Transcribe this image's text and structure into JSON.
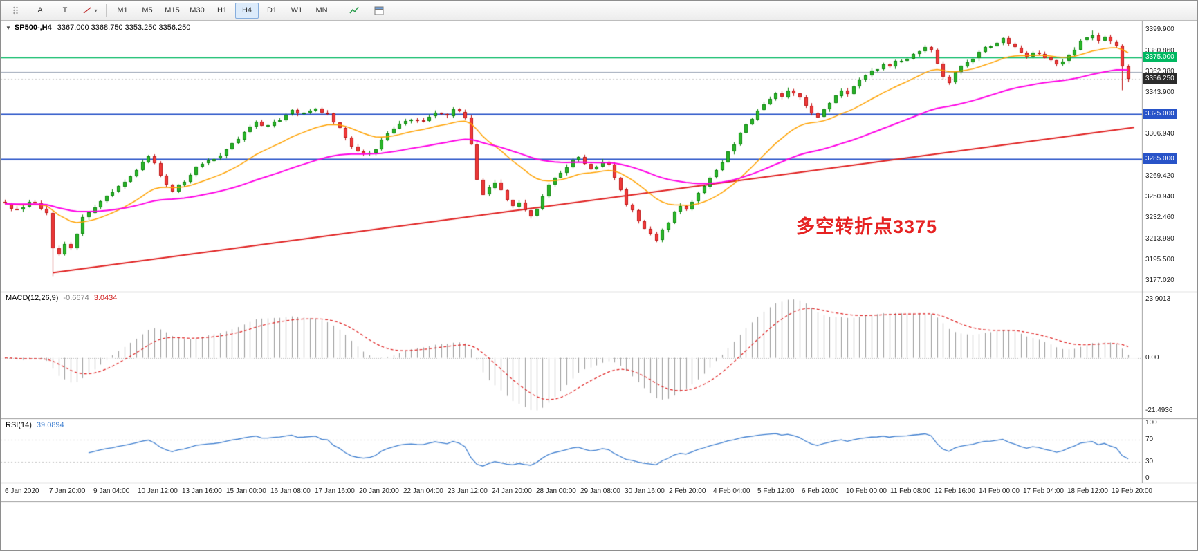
{
  "app": {
    "name": "MetaTrader chart window"
  },
  "toolbar": {
    "left_tools": [
      {
        "name": "toolbar-handle",
        "icon": "grip-dots"
      },
      {
        "name": "arrow-tool",
        "label": "A"
      },
      {
        "name": "text-tool",
        "label": "T"
      },
      {
        "name": "line-studies-tool",
        "icon": "trendline",
        "caret": "▾"
      }
    ],
    "timeframes": [
      {
        "label": "M1"
      },
      {
        "label": "M5"
      },
      {
        "label": "M15"
      },
      {
        "label": "M30"
      },
      {
        "label": "H1"
      },
      {
        "label": "H4",
        "active": true
      },
      {
        "label": "D1"
      },
      {
        "label": "W1"
      },
      {
        "label": "MN"
      }
    ],
    "right_tools": [
      {
        "name": "indicators-tool",
        "icon": "indicator"
      },
      {
        "name": "chart-window-tool",
        "icon": "window"
      }
    ]
  },
  "chart": {
    "collapse_icon": "▼",
    "symbol_period": "SP500-,H4",
    "ohlc": "3367.000 3368.750 3353.250 3356.250"
  },
  "annotation": {
    "text": "多空转折点3375",
    "color": "#e62222"
  },
  "price_axis": {
    "ticks": [
      "3399.900",
      "3380.860",
      "3362.380",
      "3343.900",
      "3306.940",
      "3269.420",
      "3250.940",
      "3232.460",
      "3213.980",
      "3195.500",
      "3177.020"
    ],
    "tags": [
      {
        "text": "3375.000",
        "price": 3375.0,
        "bg": "#00b861"
      },
      {
        "text": "3356.250",
        "price": 3356.25,
        "bg": "#2b2b2b"
      },
      {
        "text": "3325.000",
        "price": 3325.0,
        "bg": "#2853c8"
      },
      {
        "text": "3285.000",
        "price": 3285.0,
        "bg": "#2853c8"
      }
    ]
  },
  "macd_panel": {
    "name": "MACD(12,26,9)",
    "main_value": "-0.6674",
    "signal_value": "3.0434",
    "axis": [
      "23.9013",
      "0.00",
      "-21.4936"
    ]
  },
  "rsi_panel": {
    "name": "RSI(14)",
    "value": "39.0894",
    "axis": [
      "100",
      "70",
      "30",
      "0"
    ]
  },
  "timeline": {
    "labels": [
      "6 Jan 2020",
      "7 Jan 20:00",
      "9 Jan 04:00",
      "10 Jan 12:00",
      "13 Jan 16:00",
      "15 Jan 00:00",
      "16 Jan 08:00",
      "17 Jan 16:00",
      "20 Jan 20:00",
      "22 Jan 04:00",
      "23 Jan 12:00",
      "24 Jan 20:00",
      "28 Jan 00:00",
      "29 Jan 08:00",
      "30 Jan 16:00",
      "2 Feb 20:00",
      "4 Feb 04:00",
      "5 Feb 12:00",
      "6 Feb 20:00",
      "10 Feb 00:00",
      "11 Feb 08:00",
      "12 Feb 16:00",
      "14 Feb 00:00",
      "17 Feb 04:00",
      "18 Feb 12:00",
      "19 Feb 20:00"
    ]
  },
  "chart_data": {
    "type": "candlestick",
    "symbol": "SP500-",
    "timeframe": "H4",
    "bars": 189,
    "price_range": [
      3172,
      3404
    ],
    "colors": {
      "bull_fill": "#2ab52a",
      "bull_stroke": "#0c870c",
      "bear_fill": "#ef3a3a",
      "bear_stroke": "#bf1717",
      "ma_fast": "#ffa200",
      "ma_slow": "#ff00e6",
      "trend": "#e02020",
      "macd_hist": "#9a9a9a",
      "macd_signal": "#e02020",
      "rsi": "#3f7fd0"
    },
    "close_anchors": [
      [
        0,
        3244
      ],
      [
        2,
        3239
      ],
      [
        4,
        3247
      ],
      [
        6,
        3242
      ],
      [
        7,
        3237
      ],
      [
        8,
        3206
      ],
      [
        9,
        3199
      ],
      [
        10,
        3210
      ],
      [
        11,
        3206
      ],
      [
        12,
        3218
      ],
      [
        13,
        3234
      ],
      [
        15,
        3243
      ],
      [
        17,
        3251
      ],
      [
        19,
        3260
      ],
      [
        21,
        3270
      ],
      [
        23,
        3282
      ],
      [
        24,
        3288
      ],
      [
        25,
        3280
      ],
      [
        26,
        3270
      ],
      [
        27,
        3262
      ],
      [
        28,
        3257
      ],
      [
        30,
        3265
      ],
      [
        32,
        3277
      ],
      [
        34,
        3283
      ],
      [
        36,
        3289
      ],
      [
        38,
        3299
      ],
      [
        40,
        3309
      ],
      [
        42,
        3317
      ],
      [
        44,
        3315
      ],
      [
        46,
        3321
      ],
      [
        48,
        3327
      ],
      [
        50,
        3325
      ],
      [
        52,
        3330
      ],
      [
        54,
        3324
      ],
      [
        56,
        3313
      ],
      [
        57,
        3305
      ],
      [
        58,
        3297
      ],
      [
        59,
        3291
      ],
      [
        61,
        3289
      ],
      [
        62,
        3294
      ],
      [
        64,
        3307
      ],
      [
        66,
        3317
      ],
      [
        68,
        3321
      ],
      [
        70,
        3319
      ],
      [
        72,
        3325
      ],
      [
        74,
        3323
      ],
      [
        75,
        3329
      ],
      [
        76,
        3327
      ],
      [
        77,
        3321
      ],
      [
        78,
        3298
      ],
      [
        79,
        3266
      ],
      [
        80,
        3254
      ],
      [
        81,
        3259
      ],
      [
        82,
        3263
      ],
      [
        83,
        3257
      ],
      [
        84,
        3249
      ],
      [
        85,
        3243
      ],
      [
        86,
        3247
      ],
      [
        87,
        3239
      ],
      [
        88,
        3235
      ],
      [
        89,
        3241
      ],
      [
        90,
        3253
      ],
      [
        91,
        3261
      ],
      [
        92,
        3267
      ],
      [
        93,
        3273
      ],
      [
        94,
        3279
      ],
      [
        95,
        3284
      ],
      [
        96,
        3287
      ],
      [
        97,
        3281
      ],
      [
        98,
        3275
      ],
      [
        99,
        3279
      ],
      [
        100,
        3283
      ],
      [
        101,
        3279
      ],
      [
        102,
        3269
      ],
      [
        103,
        3257
      ],
      [
        104,
        3245
      ],
      [
        105,
        3239
      ],
      [
        106,
        3231
      ],
      [
        107,
        3224
      ],
      [
        108,
        3218
      ],
      [
        109,
        3214
      ],
      [
        110,
        3221
      ],
      [
        111,
        3229
      ],
      [
        112,
        3237
      ],
      [
        113,
        3243
      ],
      [
        114,
        3239
      ],
      [
        115,
        3247
      ],
      [
        116,
        3255
      ],
      [
        117,
        3261
      ],
      [
        118,
        3269
      ],
      [
        119,
        3275
      ],
      [
        120,
        3283
      ],
      [
        121,
        3291
      ],
      [
        122,
        3299
      ],
      [
        123,
        3307
      ],
      [
        124,
        3314
      ],
      [
        125,
        3321
      ],
      [
        126,
        3327
      ],
      [
        127,
        3333
      ],
      [
        128,
        3339
      ],
      [
        129,
        3343
      ],
      [
        130,
        3341
      ],
      [
        131,
        3345
      ],
      [
        132,
        3343
      ],
      [
        133,
        3339
      ],
      [
        134,
        3333
      ],
      [
        135,
        3327
      ],
      [
        136,
        3323
      ],
      [
        137,
        3329
      ],
      [
        138,
        3335
      ],
      [
        139,
        3341
      ],
      [
        140,
        3345
      ],
      [
        141,
        3343
      ],
      [
        142,
        3349
      ],
      [
        143,
        3355
      ],
      [
        144,
        3359
      ],
      [
        145,
        3363
      ],
      [
        146,
        3365
      ],
      [
        147,
        3369
      ],
      [
        148,
        3367
      ],
      [
        149,
        3371
      ],
      [
        150,
        3373
      ],
      [
        151,
        3375
      ],
      [
        152,
        3379
      ],
      [
        153,
        3382
      ],
      [
        154,
        3384
      ],
      [
        155,
        3381
      ],
      [
        156,
        3369
      ],
      [
        157,
        3359
      ],
      [
        158,
        3354
      ],
      [
        159,
        3361
      ],
      [
        160,
        3367
      ],
      [
        161,
        3371
      ],
      [
        162,
        3375
      ],
      [
        163,
        3379
      ],
      [
        164,
        3383
      ],
      [
        165,
        3385
      ],
      [
        166,
        3389
      ],
      [
        167,
        3391
      ],
      [
        168,
        3387
      ],
      [
        169,
        3383
      ],
      [
        170,
        3379
      ],
      [
        171,
        3377
      ],
      [
        172,
        3381
      ],
      [
        173,
        3379
      ],
      [
        174,
        3375
      ],
      [
        175,
        3371
      ],
      [
        176,
        3369
      ],
      [
        177,
        3373
      ],
      [
        178,
        3377
      ],
      [
        179,
        3383
      ],
      [
        180,
        3389
      ],
      [
        181,
        3393
      ],
      [
        182,
        3395
      ],
      [
        183,
        3391
      ],
      [
        184,
        3393
      ],
      [
        185,
        3389
      ],
      [
        186,
        3387
      ],
      [
        187,
        3367
      ],
      [
        188,
        3356.25
      ]
    ],
    "overrides": {
      "8": {
        "low": 3181
      },
      "182": {
        "high": 3399
      },
      "187": {
        "low": 3346,
        "close": 3367
      },
      "188": {
        "open": 3367,
        "high": 3368.75,
        "low": 3353.25,
        "close": 3356.25
      }
    },
    "hlines": [
      {
        "price": 3375.0,
        "color": "#00b861",
        "width": 1.5
      },
      {
        "price": 3362.38,
        "color": "#98a2b3",
        "width": 1
      },
      {
        "price": 3356.25,
        "color": "#cccccc",
        "width": 1,
        "dash": true
      },
      {
        "price": 3325.0,
        "color": "#2853c8",
        "width": 2
      },
      {
        "price": 3285.0,
        "color": "#2853c8",
        "width": 2
      }
    ],
    "trendline": {
      "from": [
        8,
        3184
      ],
      "to": [
        189,
        3313
      ],
      "color": "#e02020",
      "width": 2
    },
    "moving_averages": [
      {
        "type": "ema",
        "period": 18,
        "color": "#ffa200",
        "width": 1.5
      },
      {
        "type": "ema",
        "period": 55,
        "color": "#ff00e6",
        "width": 2
      }
    ],
    "macd": {
      "fast": 12,
      "slow": 26,
      "signal": 9,
      "display_max": 23.9013,
      "display_min": -21.4936
    },
    "rsi": {
      "period": 14,
      "levels": [
        70,
        30
      ]
    }
  }
}
